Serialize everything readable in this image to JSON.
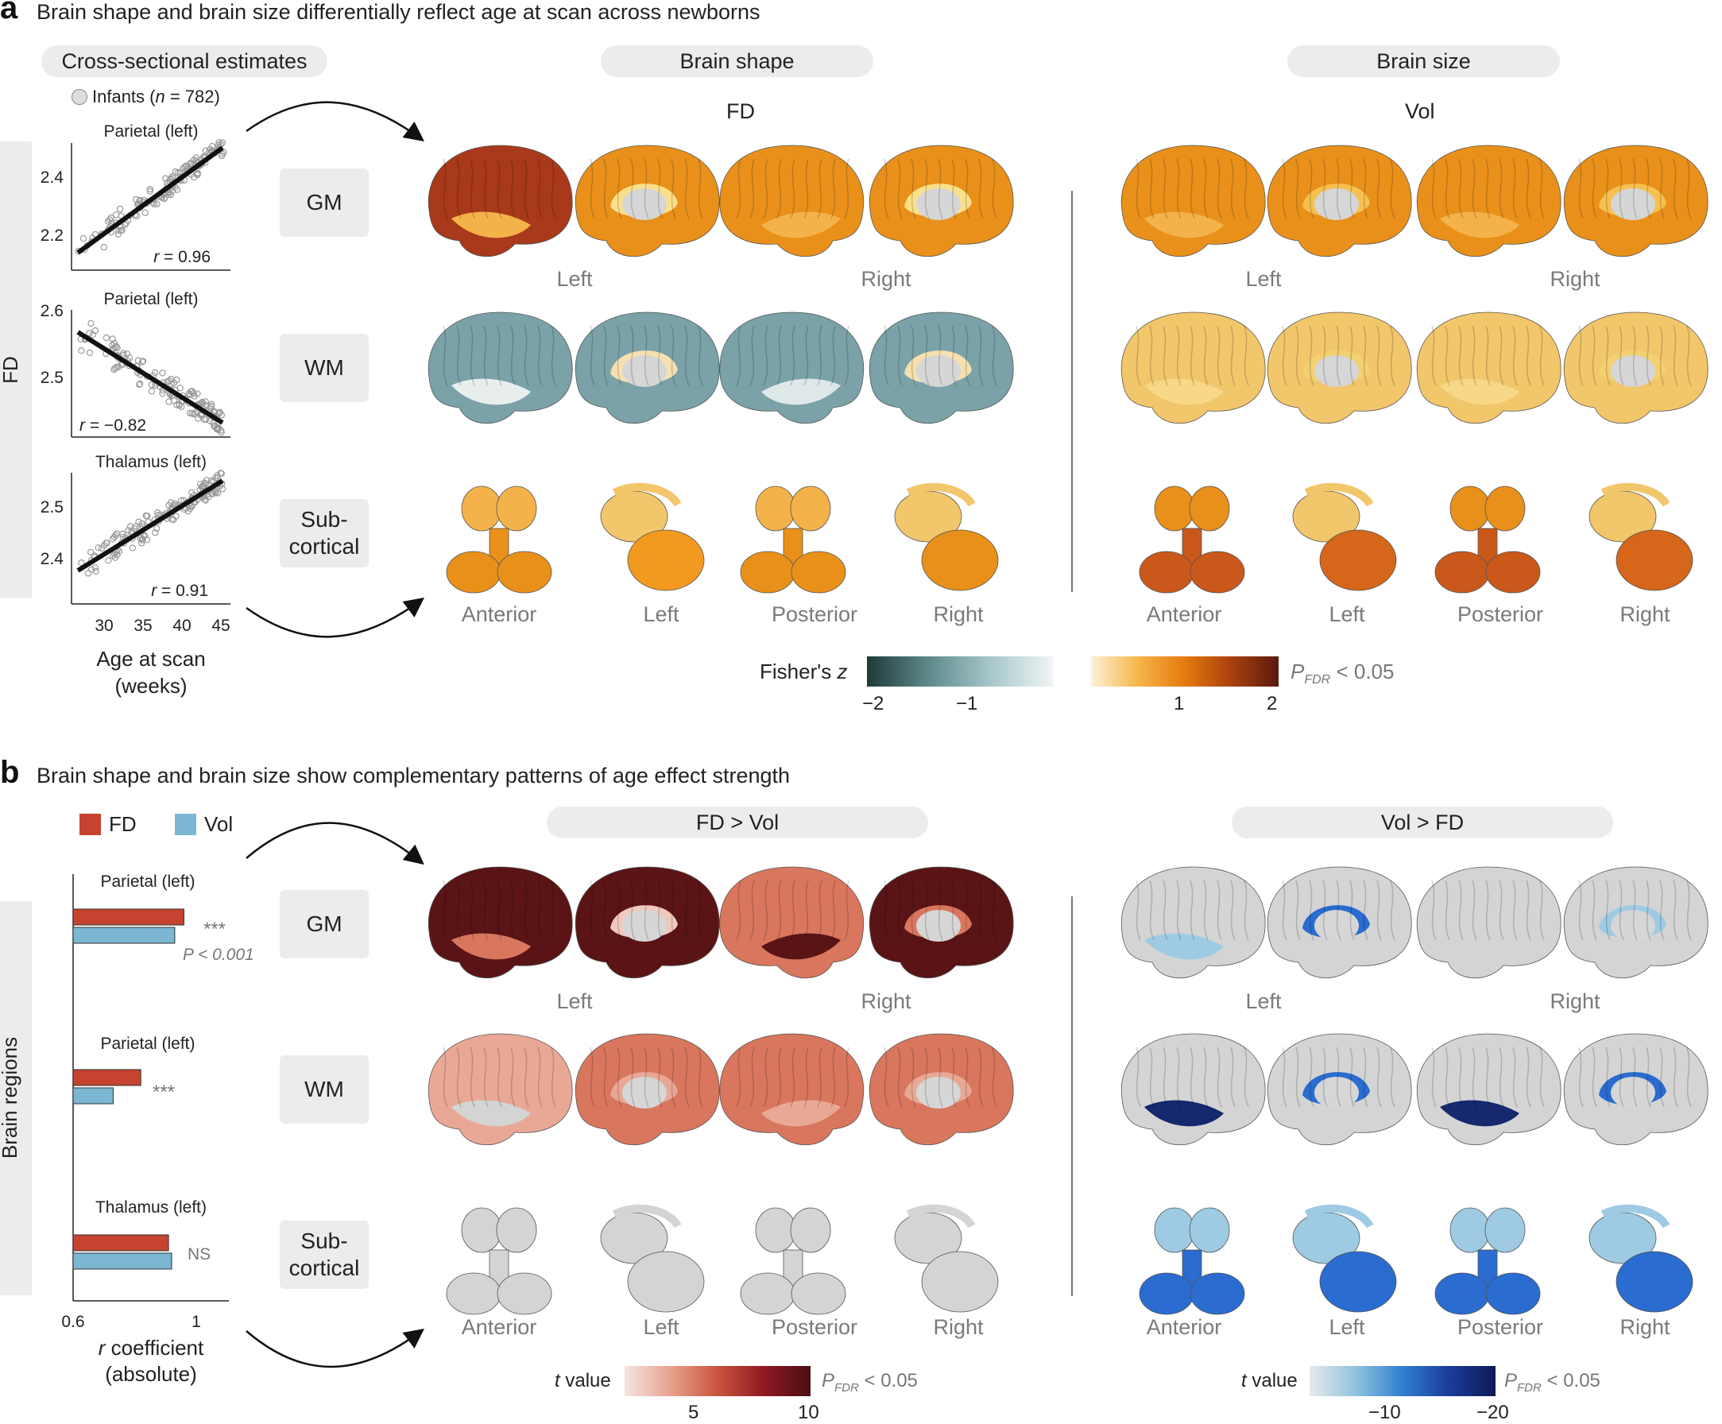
{
  "panel_a": {
    "letter": "a",
    "title": "Brain shape and brain size differentially reflect age at scan across newborns",
    "cross_sectional_label": "Cross-sectional estimates",
    "legend_prefix": "Infants (",
    "legend_n": "n",
    "legend_suffix": " = 782)",
    "y_axis_label": "FD",
    "x_axis_label_line1": "Age at scan",
    "x_axis_label_line2": "(weeks)",
    "x_ticks": [
      "30",
      "35",
      "40",
      "45"
    ],
    "scatter_panels": [
      {
        "title": "Parietal (left)",
        "yticks": [
          "2.4",
          "2.2"
        ],
        "r_text": " = 0.96"
      },
      {
        "title": "Parietal (left)",
        "yticks": [
          "2.6",
          "2.5"
        ],
        "r_text": " = −0.82"
      },
      {
        "title": "Thalamus (left)",
        "yticks": [
          "2.5",
          "2.4"
        ],
        "r_text": " = 0.91"
      }
    ],
    "shape_pill": "Brain shape",
    "size_pill": "Brain size",
    "fd_header": "FD",
    "vol_header": "Vol",
    "rows": [
      "GM",
      "WM",
      "Sub-\ncortical"
    ],
    "row_gm": "GM",
    "row_wm": "WM",
    "row_sub1": "Sub-",
    "row_sub2": "cortical",
    "left_label": "Left",
    "right_label": "Right",
    "views": [
      "Anterior",
      "Left",
      "Posterior",
      "Right"
    ],
    "colorbar": {
      "label_main": "Fisher's ",
      "label_italic": "z",
      "ticks_neg": [
        "−2",
        "−1"
      ],
      "ticks_pos": [
        "1",
        "2"
      ],
      "pfdr_p": "P",
      "pfdr_sub": "FDR",
      "pfdr_rest": " < 0.05",
      "neg_colors": [
        "#1f3a38",
        "#5e8a8c",
        "#a7c8ca",
        "#f2f6f6"
      ],
      "pos_colors": [
        "#fdf1d6",
        "#f6b54a",
        "#e57a0d",
        "#a9400f",
        "#5a1a0e"
      ]
    }
  },
  "panel_b": {
    "letter": "b",
    "title": "Brain shape and brain size show complementary patterns of age effect strength",
    "legend_fd": "FD",
    "legend_vol": "Vol",
    "y_axis_label": "Brain regions",
    "x_axis_label_italic": "r",
    "x_axis_label_rest": " coefficient",
    "x_axis_label_line2": "(absolute)",
    "x_ticks": [
      "0.6",
      "1"
    ],
    "bar_groups": [
      {
        "title": "Parietal (left)",
        "fd": 0.96,
        "vol": 0.93,
        "sig": "***",
        "p": "P < 0.001"
      },
      {
        "title": "Parietal (left)",
        "fd": 0.82,
        "vol": 0.73,
        "sig": "***",
        "p": ""
      },
      {
        "title": "Thalamus (left)",
        "fd": 0.91,
        "vol": 0.92,
        "sig": "NS",
        "p": ""
      }
    ],
    "fd_vol_pill": "FD > Vol",
    "vol_fd_pill": "Vol > FD",
    "row_gm": "GM",
    "row_wm": "WM",
    "row_sub1": "Sub-",
    "row_sub2": "cortical",
    "left_label": "Left",
    "right_label": "Right",
    "views": [
      "Anterior",
      "Left",
      "Posterior",
      "Right"
    ],
    "colorbar_t_red": {
      "label_italic": "t",
      "label_rest": " value",
      "ticks": [
        "5",
        "10"
      ],
      "pfdr_p": "P",
      "pfdr_sub": "FDR",
      "pfdr_rest": " < 0.05"
    },
    "colorbar_t_blue": {
      "label_italic": "t",
      "label_rest": " value",
      "ticks": [
        "−10",
        "−20"
      ],
      "pfdr_p": "P",
      "pfdr_sub": "FDR",
      "pfdr_rest": " < 0.05"
    },
    "colors": {
      "fd_bar": "#c5432f",
      "vol_bar": "#7bb7d3"
    }
  }
}
